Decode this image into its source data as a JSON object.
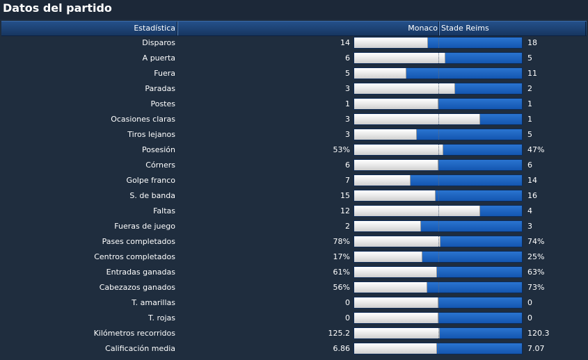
{
  "title": "Datos del partido",
  "header": {
    "stat_label": "Estadística",
    "home_team": "Monaco",
    "away_team": "Stade Reims"
  },
  "colors": {
    "home_bar": "#e8e8e8",
    "away_bar": "#1f66c2",
    "header_bg": "#1d4374",
    "page_bg": "#1f2d3e"
  },
  "stats": [
    {
      "label": "Disparos",
      "home": "14",
      "away": "18",
      "home_share": 0.44
    },
    {
      "label": "A puerta",
      "home": "6",
      "away": "5",
      "home_share": 0.545
    },
    {
      "label": "Fuera",
      "home": "5",
      "away": "11",
      "home_share": 0.31
    },
    {
      "label": "Paradas",
      "home": "3",
      "away": "2",
      "home_share": 0.6
    },
    {
      "label": "Postes",
      "home": "1",
      "away": "1",
      "home_share": 0.5
    },
    {
      "label": "Ocasiones claras",
      "home": "3",
      "away": "1",
      "home_share": 0.75
    },
    {
      "label": "Tiros lejanos",
      "home": "3",
      "away": "5",
      "home_share": 0.375
    },
    {
      "label": "Posesión",
      "home": "53%",
      "away": "47%",
      "home_share": 0.53
    },
    {
      "label": "Córners",
      "home": "6",
      "away": "6",
      "home_share": 0.5
    },
    {
      "label": "Golpe franco",
      "home": "7",
      "away": "14",
      "home_share": 0.335
    },
    {
      "label": "S. de banda",
      "home": "15",
      "away": "16",
      "home_share": 0.485
    },
    {
      "label": "Faltas",
      "home": "12",
      "away": "4",
      "home_share": 0.75
    },
    {
      "label": "Fueras de juego",
      "home": "2",
      "away": "3",
      "home_share": 0.4
    },
    {
      "label": "Pases completados",
      "home": "78%",
      "away": "74%",
      "home_share": 0.513
    },
    {
      "label": "Centros completados",
      "home": "17%",
      "away": "25%",
      "home_share": 0.405
    },
    {
      "label": "Entradas ganadas",
      "home": "61%",
      "away": "63%",
      "home_share": 0.492
    },
    {
      "label": "Cabezazos ganados",
      "home": "56%",
      "away": "73%",
      "home_share": 0.434
    },
    {
      "label": "T. amarillas",
      "home": "0",
      "away": "0",
      "home_share": 0.5
    },
    {
      "label": "T. rojas",
      "home": "0",
      "away": "0",
      "home_share": 0.5
    },
    {
      "label": "Kilómetros recorridos",
      "home": "125.2",
      "away": "120.3",
      "home_share": 0.51
    },
    {
      "label": "Calificación media",
      "home": "6.86",
      "away": "7.07",
      "home_share": 0.492
    }
  ]
}
